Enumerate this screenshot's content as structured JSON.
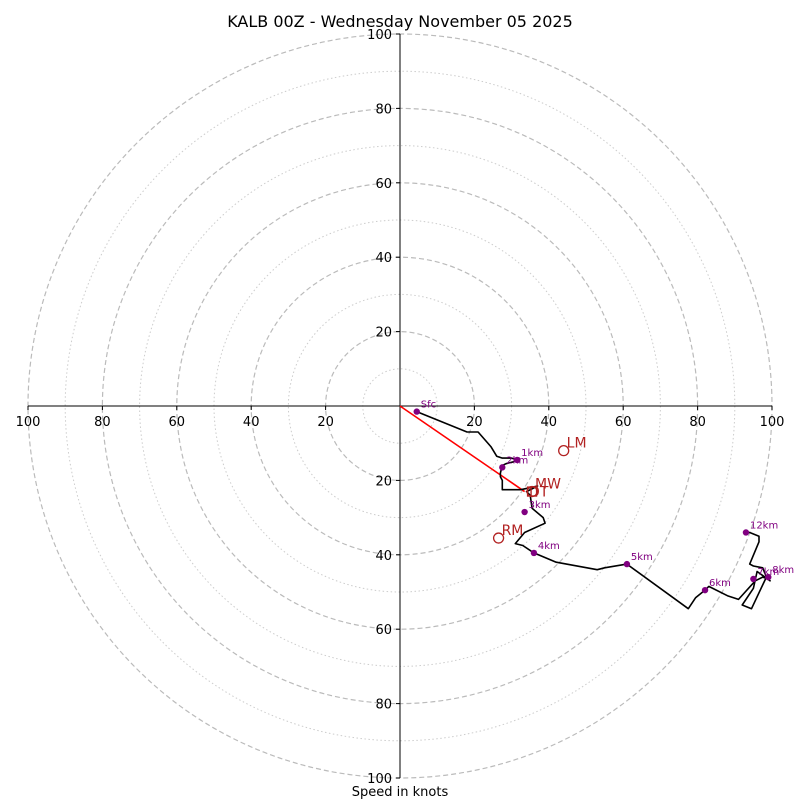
{
  "chart_data": {
    "type": "hodograph",
    "title": "KALB 00Z - Wednesday November 05 2025",
    "xlabel": "Speed in knots",
    "xlim": [
      -100,
      100
    ],
    "ylim": [
      -100,
      100
    ],
    "major_rings": [
      20,
      40,
      60,
      80,
      100
    ],
    "minor_rings": [
      10,
      30,
      50,
      70,
      90
    ],
    "x_ticks": [
      {
        "value": -100,
        "label": "100"
      },
      {
        "value": -80,
        "label": "80"
      },
      {
        "value": -60,
        "label": "60"
      },
      {
        "value": -40,
        "label": "40"
      },
      {
        "value": -20,
        "label": "20"
      },
      {
        "value": 20,
        "label": "20"
      },
      {
        "value": 40,
        "label": "40"
      },
      {
        "value": 60,
        "label": "60"
      },
      {
        "value": 80,
        "label": "80"
      },
      {
        "value": 100,
        "label": "100"
      }
    ],
    "y_ticks": [
      {
        "value": 100,
        "label": "100"
      },
      {
        "value": 80,
        "label": "80"
      },
      {
        "value": 60,
        "label": "60"
      },
      {
        "value": 40,
        "label": "40"
      },
      {
        "value": 20,
        "label": "20"
      },
      {
        "value": -20,
        "label": "20"
      },
      {
        "value": -40,
        "label": "40"
      },
      {
        "value": -60,
        "label": "60"
      },
      {
        "value": -80,
        "label": "80"
      },
      {
        "value": -100,
        "label": "100"
      }
    ],
    "trace": [
      [
        4.5,
        -1.5
      ],
      [
        18,
        -7
      ],
      [
        21,
        -7
      ],
      [
        24.5,
        -11
      ],
      [
        26,
        -13.5
      ],
      [
        27.5,
        -14
      ],
      [
        30,
        -14
      ],
      [
        31.5,
        -14.5
      ],
      [
        32,
        -14
      ],
      [
        30.5,
        -15
      ],
      [
        28.5,
        -15.5
      ],
      [
        27.5,
        -16
      ],
      [
        27,
        -18
      ],
      [
        27,
        -19
      ],
      [
        27.5,
        -20
      ],
      [
        27.5,
        -22.5
      ],
      [
        29.5,
        -22.5
      ],
      [
        32.5,
        -22.5
      ],
      [
        37,
        -21.5
      ],
      [
        34,
        -23
      ],
      [
        35,
        -24
      ],
      [
        35.5,
        -27.5
      ],
      [
        38.5,
        -30
      ],
      [
        39,
        -31.5
      ],
      [
        33.5,
        -34
      ],
      [
        31,
        -37
      ],
      [
        33,
        -37.5
      ],
      [
        36,
        -39.5
      ],
      [
        42,
        -42
      ],
      [
        53,
        -44
      ],
      [
        55,
        -43.5
      ],
      [
        61,
        -42.5
      ],
      [
        77.5,
        -54.5
      ],
      [
        79.5,
        -51.5
      ],
      [
        82,
        -49.5
      ],
      [
        83,
        -48.5
      ],
      [
        88,
        -51
      ],
      [
        91,
        -52
      ],
      [
        95.5,
        -47
      ],
      [
        97.5,
        -46
      ],
      [
        99,
        -46.5
      ],
      [
        99.5,
        -47
      ],
      [
        96,
        -44.5
      ],
      [
        95,
        -49
      ],
      [
        92,
        -53.5
      ],
      [
        94.5,
        -54.5
      ],
      [
        98.5,
        -46
      ],
      [
        97.5,
        -43.5
      ],
      [
        95,
        -43
      ],
      [
        94,
        -42.5
      ],
      [
        96.5,
        -36.5
      ],
      [
        96.5,
        -35
      ],
      [
        94,
        -34
      ],
      [
        93,
        -34
      ]
    ],
    "height_markers": [
      {
        "label": "Sfc",
        "u": 4.5,
        "v": -1.5
      },
      {
        "label": "1km",
        "u": 31.5,
        "v": -14.5
      },
      {
        "label": "2km",
        "u": 27.5,
        "v": -16.5
      },
      {
        "label": "3km",
        "u": 33.5,
        "v": -28.5
      },
      {
        "label": "4km",
        "u": 36,
        "v": -39.5
      },
      {
        "label": "5km",
        "u": 61,
        "v": -42.5
      },
      {
        "label": "6km",
        "u": 82,
        "v": -49.5
      },
      {
        "label": "7km",
        "u": 95,
        "v": -46.5
      },
      {
        "label": "8km",
        "u": 99,
        "v": -46
      },
      {
        "label": "12km",
        "u": 93,
        "v": -34
      }
    ],
    "storm_motions": [
      {
        "label": "LM",
        "u": 44,
        "v": -12
      },
      {
        "label": "MW",
        "u": 35.5,
        "v": -23
      },
      {
        "label": "RM",
        "u": 26.5,
        "v": -35.5
      },
      {
        "label": "DT",
        "u": 35.5,
        "v": -23
      }
    ],
    "shear_vector": {
      "from": [
        0,
        0
      ],
      "to": [
        33.5,
        -23
      ]
    },
    "colors": {
      "trace": "#000000",
      "marker": "#800080",
      "storm_motion": "#b22222",
      "shear_vector": "#ff0000",
      "ring": "#bbbbbb",
      "axis": "#000000"
    }
  }
}
